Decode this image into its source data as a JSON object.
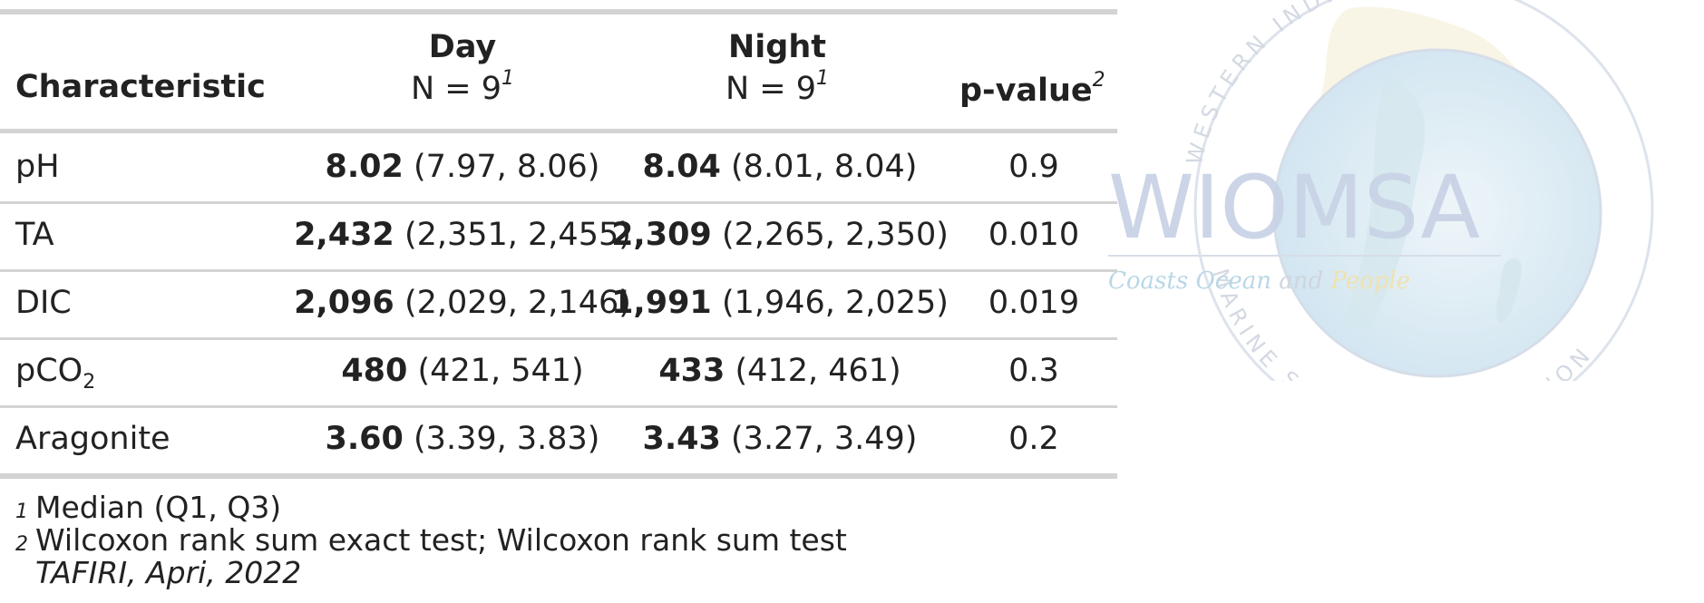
{
  "table": {
    "headers": {
      "characteristic": "Characteristic",
      "day_title": "Day",
      "day_n": "N = 9",
      "day_sup": "1",
      "night_title": "Night",
      "night_n": "N = 9",
      "night_sup": "1",
      "pvalue": "p-value",
      "pvalue_sup": "2"
    },
    "rows": [
      {
        "label": "pH",
        "label_sub": "",
        "day_median": "8.02",
        "day_iqr": "(7.97, 8.06)",
        "night_median": "8.04",
        "night_iqr": "(8.01, 8.04)",
        "p": "0.9"
      },
      {
        "label": "TA",
        "label_sub": "",
        "day_median": "2,432",
        "day_iqr": "(2,351, 2,455)",
        "night_median": "2,309",
        "night_iqr": "(2,265, 2,350)",
        "p": "0.010"
      },
      {
        "label": "DIC",
        "label_sub": "",
        "day_median": "2,096",
        "day_iqr": "(2,029, 2,146)",
        "night_median": "1,991",
        "night_iqr": "(1,946, 2,025)",
        "p": "0.019"
      },
      {
        "label": "pCO",
        "label_sub": "2",
        "day_median": "480",
        "day_iqr": "(421, 541)",
        "night_median": "433",
        "night_iqr": "(412, 461)",
        "p": "0.3"
      },
      {
        "label": "Aragonite",
        "label_sub": "",
        "day_median": "3.60",
        "day_iqr": "(3.39, 3.83)",
        "night_median": "3.43",
        "night_iqr": "(3.27, 3.49)",
        "p": "0.2"
      }
    ],
    "footnotes": [
      {
        "mark": "1",
        "text": "Median (Q1, Q3)"
      },
      {
        "mark": "2",
        "text": "Wilcoxon rank sum exact test; Wilcoxon rank sum test"
      }
    ],
    "source_note": "TAFIRI, Apri, 2022"
  },
  "logo": {
    "wordmark": "WIOMSA",
    "tagline_words": [
      "Coasts",
      "Ocean",
      "and",
      "People"
    ],
    "ring_text": "WESTERN INDIAN OCEAN · MARINE SCIENCE ASSOCIATION",
    "colors": {
      "wordmark": "#c9d3e6",
      "ring": "#dde3ec",
      "tagline_blue": "#b9d7e6",
      "tagline_gray": "#cfd5de",
      "tagline_yellow": "#efe2b0",
      "land": "#f7f1dc",
      "water": "#d8eaf3"
    }
  }
}
